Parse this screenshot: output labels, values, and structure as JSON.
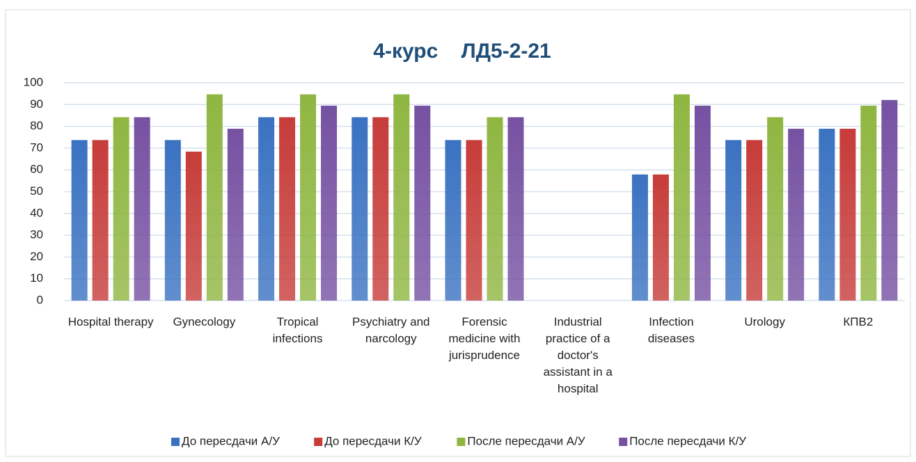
{
  "chart_data": {
    "type": "bar",
    "title": "4-курс    ЛД5-2-21",
    "categories": [
      "Hospital therapy",
      "Gynecology",
      "Tropical infections",
      "Psychiatry and narcology",
      "Forensic medicine with jurisprudence",
      "Industrial practice of a doctor's assistant in a hospital",
      "Infection diseases",
      "Urology",
      "КПВ2"
    ],
    "series": [
      {
        "name": "До пересдачи А/У",
        "color": "#3a72c1",
        "values": [
          73.7,
          73.7,
          84.2,
          84.2,
          73.7,
          null,
          57.9,
          73.7,
          78.9
        ]
      },
      {
        "name": "До пересдачи К/У",
        "color": "#c63c39",
        "values": [
          73.7,
          68.4,
          84.2,
          84.2,
          73.7,
          null,
          57.9,
          73.7,
          78.9
        ]
      },
      {
        "name": "После пересдачи А/У",
        "color": "#8fb641",
        "values": [
          84.2,
          94.7,
          94.7,
          94.7,
          84.2,
          null,
          94.7,
          84.2,
          89.5
        ]
      },
      {
        "name": "После пересдачи К/У",
        "color": "#7651a2",
        "values": [
          84.2,
          78.9,
          89.5,
          89.5,
          84.2,
          null,
          89.5,
          78.9,
          92.1
        ]
      }
    ],
    "ylim": [
      0,
      100
    ],
    "yticks": [
      0,
      10,
      20,
      30,
      40,
      50,
      60,
      70,
      80,
      90,
      100
    ],
    "grid": true,
    "legend": "bottom"
  }
}
